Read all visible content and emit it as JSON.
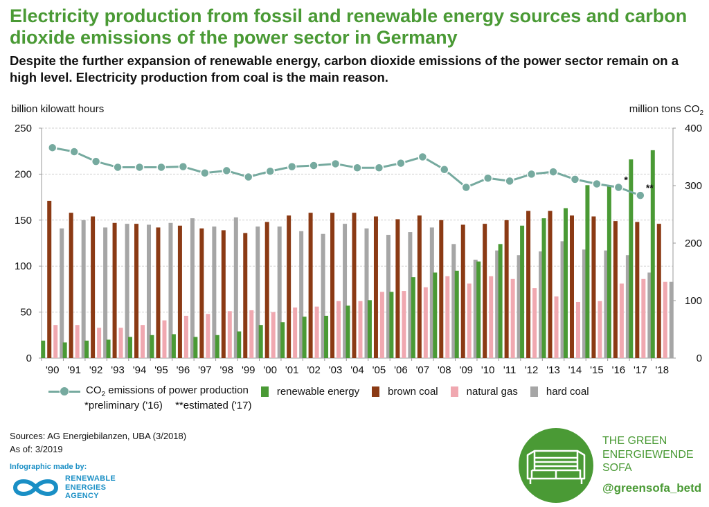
{
  "title": "Electricity production from fossil and renewable energy sources and carbon dioxide emissions of the power sector in Germany",
  "subtitle": "Despite the further expansion of renewable energy, carbon dioxide emissions of the power sector remain on a high level. Electricity production from coal is the main reason.",
  "axis_left_label": "billion kilowatt hours",
  "axis_right_label": "million tons CO",
  "axis_right_label_sub": "2",
  "legend": {
    "co2_prefix": "CO",
    "co2_sub": "2",
    "co2_suffix": " emissions of power production",
    "renewable": "renewable energy",
    "brown": "brown coal",
    "gas": "natural gas",
    "hard": "hard coal",
    "note_preliminary": "*preliminary ('16)",
    "note_estimated": "**estimated ('17)"
  },
  "sources": "Sources: AG Energiebilanzen, UBA (3/2018)",
  "as_of": "As of: 3/2019",
  "credit": "Infographic made by:",
  "agency": [
    "RENEWABLE",
    "ENERGIES",
    "AGENCY"
  ],
  "sofa": [
    "THE GREEN",
    "ENERGIEWENDE",
    "SOFA"
  ],
  "sofa_handle": "@greensofa_betd",
  "colors": {
    "renewable": "#4a9a35",
    "brown": "#8b3a14",
    "gas": "#f0a8b0",
    "hard": "#a6a6a6",
    "co2": "#76aa9f",
    "title": "#4a9a35"
  },
  "chart_data": {
    "type": "bar+line",
    "categories": [
      "'90",
      "'91",
      "'92",
      "'93",
      "'94",
      "'95",
      "'96",
      "'97",
      "'98",
      "'99",
      "'00",
      "'01",
      "'02",
      "'03",
      "'04",
      "'05",
      "'06",
      "'07",
      "'08",
      "'09",
      "'10",
      "'11",
      "'12",
      "'13",
      "'14",
      "'15",
      "'16",
      "'17",
      "'18"
    ],
    "ylim_left": [
      0,
      250
    ],
    "yticks_left": [
      0,
      50,
      100,
      150,
      200,
      250
    ],
    "ylim_right": [
      0,
      400
    ],
    "yticks_right": [
      0,
      100,
      200,
      300,
      400
    ],
    "grid": true,
    "series": [
      {
        "name": "renewable energy",
        "key": "renewable",
        "axis": "left",
        "values": [
          19,
          17,
          19,
          20,
          23,
          25,
          26,
          23,
          25,
          29,
          36,
          39,
          45,
          46,
          57,
          63,
          72,
          88,
          93,
          95,
          105,
          124,
          144,
          152,
          163,
          188,
          188,
          216,
          226
        ]
      },
      {
        "name": "brown coal",
        "key": "brown",
        "axis": "left",
        "values": [
          171,
          158,
          154,
          147,
          146,
          142,
          144,
          141,
          139,
          136,
          148,
          155,
          158,
          158,
          158,
          154,
          151,
          155,
          150,
          145,
          146,
          150,
          160,
          160,
          155,
          154,
          149,
          148,
          146
        ]
      },
      {
        "name": "natural gas",
        "key": "gas",
        "axis": "left",
        "values": [
          36,
          36,
          33,
          33,
          36,
          41,
          46,
          48,
          51,
          52,
          50,
          55,
          56,
          62,
          62,
          72,
          73,
          77,
          89,
          81,
          89,
          86,
          76,
          67,
          61,
          62,
          81,
          86,
          83
        ]
      },
      {
        "name": "hard coal",
        "key": "hard",
        "axis": "left",
        "values": [
          141,
          150,
          142,
          146,
          145,
          147,
          152,
          143,
          153,
          143,
          143,
          138,
          135,
          146,
          141,
          134,
          137,
          142,
          124,
          107,
          117,
          112,
          116,
          127,
          118,
          117,
          112,
          93,
          83
        ]
      },
      {
        "name": "CO2 emissions of power production",
        "key": "co2",
        "axis": "right",
        "values": [
          366,
          359,
          342,
          332,
          332,
          332,
          333,
          322,
          326,
          315,
          325,
          333,
          335,
          338,
          331,
          331,
          339,
          350,
          328,
          297,
          313,
          308,
          320,
          324,
          311,
          303,
          297,
          283,
          null
        ],
        "annotations": [
          {
            "index": 26,
            "text": "*"
          },
          {
            "index": 27,
            "text": "**"
          }
        ]
      }
    ]
  }
}
